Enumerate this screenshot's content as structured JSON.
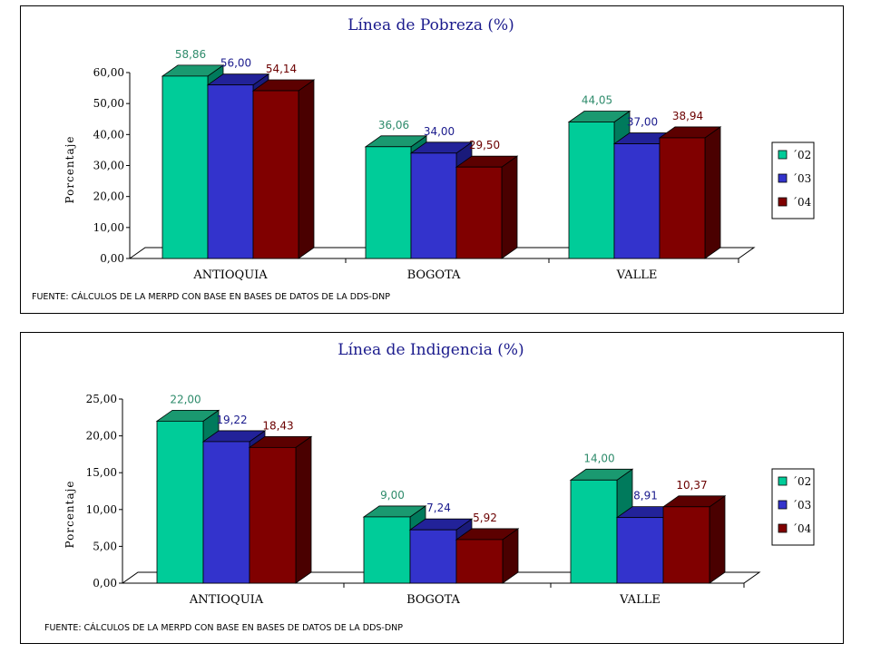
{
  "series_colors": {
    "front": [
      "#00cc99",
      "#3333cc",
      "#800000"
    ],
    "top": [
      "#1a9970",
      "#222299",
      "#5c0000"
    ],
    "side": [
      "#007a5c",
      "#1a1a7a",
      "#4a0000"
    ],
    "label": [
      "#2e8b6b",
      "#1a1a8c",
      "#6b0000"
    ]
  },
  "chart_data": [
    {
      "type": "bar",
      "title": "Línea de Pobreza (%)",
      "ylabel": "Porcentaje",
      "categories": [
        "ANTIOQUIA",
        "BOGOTA",
        "VALLE"
      ],
      "series": [
        {
          "name": "´02",
          "values": [
            58.86,
            36.06,
            44.05
          ],
          "labels": [
            "58,86",
            "36,06",
            "44,05"
          ]
        },
        {
          "name": "´03",
          "values": [
            56.0,
            34.0,
            37.0
          ],
          "labels": [
            "56,00",
            "34,00",
            "37,00"
          ]
        },
        {
          "name": "´04",
          "values": [
            54.14,
            29.5,
            38.94
          ],
          "labels": [
            "54,14",
            "29,50",
            "38,94"
          ]
        }
      ],
      "yticks": [
        "0,00",
        "10,00",
        "20,00",
        "30,00",
        "40,00",
        "50,00",
        "60,00"
      ],
      "ylim": [
        0,
        60
      ],
      "legend": "right",
      "note": "FUENTE: CÁLCULOS DE LA MERPD CON BASE EN BASES DE DATOS DE LA DDS-DNP"
    },
    {
      "type": "bar",
      "title": "Línea de Indigencia (%)",
      "ylabel": "Porcentaje",
      "categories": [
        "ANTIOQUIA",
        "BOGOTA",
        "VALLE"
      ],
      "series": [
        {
          "name": "´02",
          "values": [
            22.0,
            9.0,
            14.0
          ],
          "labels": [
            "22,00",
            "9,00",
            "14,00"
          ]
        },
        {
          "name": "´03",
          "values": [
            19.22,
            7.24,
            8.91
          ],
          "labels": [
            "19,22",
            "7,24",
            "8,91"
          ]
        },
        {
          "name": "´04",
          "values": [
            18.43,
            5.92,
            10.37
          ],
          "labels": [
            "18,43",
            "5,92",
            "10,37"
          ]
        }
      ],
      "yticks": [
        "0,00",
        "5,00",
        "10,00",
        "15,00",
        "20,00",
        "25,00"
      ],
      "ylim": [
        0,
        25
      ],
      "legend": "right",
      "note": "FUENTE: CÁLCULOS DE LA MERPD CON BASE EN BASES DE DATOS DE LA DDS-DNP"
    }
  ]
}
